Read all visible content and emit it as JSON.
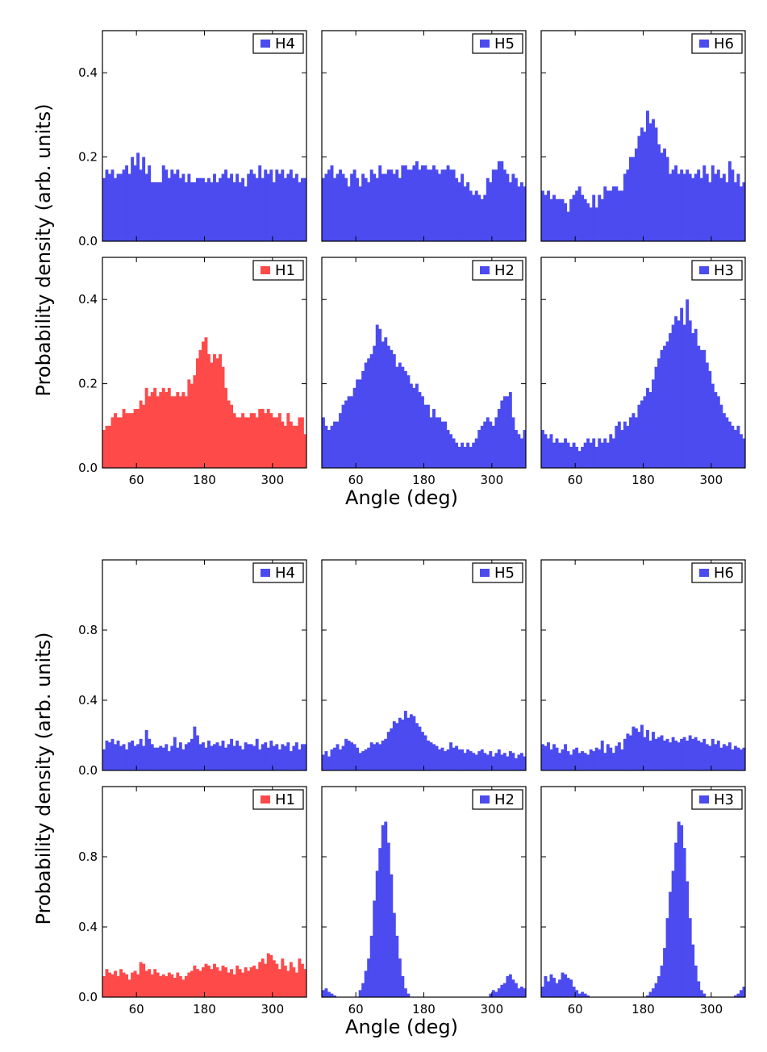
{
  "chart_data": [
    {
      "type": "bar",
      "ylabel": "Probability density (arb. units)",
      "xlabel": "Angle (deg)",
      "xlim": [
        0,
        360
      ],
      "ylim": [
        0,
        0.5
      ],
      "xticks": [
        "60",
        "180",
        "300"
      ],
      "yticks": [
        "0.0",
        "0.2",
        "0.4"
      ],
      "bin_width": 5,
      "panels": [
        {
          "label": "H4",
          "color": "#4b4bf0",
          "x_tick_labels_shown": false,
          "y_tick_labels_shown": true,
          "values": [
            0.15,
            0.17,
            0.16,
            0.17,
            0.15,
            0.16,
            0.16,
            0.17,
            0.18,
            0.16,
            0.2,
            0.18,
            0.21,
            0.17,
            0.2,
            0.16,
            0.18,
            0.14,
            0.14,
            0.14,
            0.14,
            0.18,
            0.17,
            0.15,
            0.17,
            0.16,
            0.17,
            0.15,
            0.16,
            0.14,
            0.16,
            0.14,
            0.14,
            0.15,
            0.15,
            0.15,
            0.14,
            0.15,
            0.14,
            0.16,
            0.14,
            0.15,
            0.16,
            0.17,
            0.15,
            0.16,
            0.14,
            0.16,
            0.14,
            0.15,
            0.13,
            0.16,
            0.17,
            0.16,
            0.15,
            0.18,
            0.15,
            0.17,
            0.16,
            0.17,
            0.14,
            0.17,
            0.16,
            0.17,
            0.15,
            0.16,
            0.17,
            0.15,
            0.16,
            0.14,
            0.15,
            0.15
          ]
        },
        {
          "label": "H5",
          "color": "#4b4bf0",
          "x_tick_labels_shown": false,
          "y_tick_labels_shown": false,
          "values": [
            0.15,
            0.16,
            0.17,
            0.18,
            0.15,
            0.16,
            0.17,
            0.16,
            0.15,
            0.13,
            0.16,
            0.17,
            0.15,
            0.13,
            0.16,
            0.15,
            0.14,
            0.17,
            0.16,
            0.15,
            0.18,
            0.16,
            0.16,
            0.17,
            0.17,
            0.16,
            0.17,
            0.15,
            0.18,
            0.18,
            0.17,
            0.17,
            0.18,
            0.19,
            0.17,
            0.18,
            0.18,
            0.17,
            0.17,
            0.18,
            0.17,
            0.16,
            0.17,
            0.17,
            0.18,
            0.17,
            0.17,
            0.15,
            0.14,
            0.16,
            0.13,
            0.14,
            0.12,
            0.11,
            0.12,
            0.11,
            0.1,
            0.11,
            0.15,
            0.14,
            0.17,
            0.17,
            0.19,
            0.19,
            0.17,
            0.16,
            0.14,
            0.16,
            0.15,
            0.13,
            0.14,
            0.13
          ]
        },
        {
          "label": "H6",
          "color": "#4b4bf0",
          "x_tick_labels_shown": false,
          "y_tick_labels_shown": false,
          "values": [
            0.12,
            0.11,
            0.12,
            0.1,
            0.11,
            0.1,
            0.1,
            0.1,
            0.09,
            0.07,
            0.1,
            0.11,
            0.12,
            0.13,
            0.11,
            0.1,
            0.09,
            0.08,
            0.11,
            0.08,
            0.11,
            0.1,
            0.13,
            0.12,
            0.12,
            0.13,
            0.13,
            0.12,
            0.12,
            0.16,
            0.17,
            0.2,
            0.2,
            0.22,
            0.25,
            0.27,
            0.26,
            0.31,
            0.28,
            0.29,
            0.27,
            0.23,
            0.21,
            0.22,
            0.2,
            0.16,
            0.17,
            0.18,
            0.16,
            0.17,
            0.16,
            0.17,
            0.16,
            0.15,
            0.16,
            0.17,
            0.15,
            0.18,
            0.16,
            0.14,
            0.18,
            0.16,
            0.17,
            0.15,
            0.16,
            0.14,
            0.19,
            0.17,
            0.14,
            0.16,
            0.13,
            0.14
          ]
        },
        {
          "label": "H1",
          "color": "#ff4a4a",
          "x_tick_labels_shown": true,
          "y_tick_labels_shown": true,
          "values": [
            0.09,
            0.1,
            0.1,
            0.12,
            0.13,
            0.12,
            0.12,
            0.14,
            0.13,
            0.13,
            0.13,
            0.14,
            0.14,
            0.16,
            0.15,
            0.19,
            0.17,
            0.18,
            0.19,
            0.17,
            0.18,
            0.19,
            0.18,
            0.19,
            0.17,
            0.17,
            0.18,
            0.17,
            0.18,
            0.17,
            0.21,
            0.2,
            0.22,
            0.26,
            0.28,
            0.3,
            0.31,
            0.27,
            0.25,
            0.27,
            0.26,
            0.27,
            0.24,
            0.19,
            0.16,
            0.15,
            0.13,
            0.12,
            0.12,
            0.13,
            0.12,
            0.12,
            0.13,
            0.13,
            0.12,
            0.14,
            0.14,
            0.13,
            0.14,
            0.13,
            0.12,
            0.12,
            0.13,
            0.11,
            0.1,
            0.13,
            0.11,
            0.1,
            0.1,
            0.12,
            0.12,
            0.08
          ]
        },
        {
          "label": "H2",
          "color": "#4b4bf0",
          "x_tick_labels_shown": true,
          "y_tick_labels_shown": false,
          "values": [
            0.12,
            0.1,
            0.09,
            0.1,
            0.11,
            0.11,
            0.13,
            0.15,
            0.16,
            0.17,
            0.17,
            0.19,
            0.21,
            0.21,
            0.23,
            0.25,
            0.26,
            0.27,
            0.29,
            0.34,
            0.33,
            0.3,
            0.31,
            0.29,
            0.28,
            0.27,
            0.24,
            0.25,
            0.24,
            0.23,
            0.22,
            0.2,
            0.19,
            0.2,
            0.18,
            0.17,
            0.15,
            0.15,
            0.12,
            0.14,
            0.12,
            0.12,
            0.11,
            0.11,
            0.09,
            0.08,
            0.07,
            0.06,
            0.05,
            0.06,
            0.05,
            0.06,
            0.05,
            0.06,
            0.07,
            0.09,
            0.1,
            0.11,
            0.12,
            0.11,
            0.1,
            0.12,
            0.14,
            0.16,
            0.17,
            0.17,
            0.18,
            0.12,
            0.09,
            0.08,
            0.07,
            0.09
          ]
        },
        {
          "label": "H3",
          "color": "#4b4bf0",
          "x_tick_labels_shown": true,
          "y_tick_labels_shown": false,
          "values": [
            0.09,
            0.08,
            0.07,
            0.08,
            0.06,
            0.07,
            0.06,
            0.06,
            0.07,
            0.06,
            0.05,
            0.06,
            0.05,
            0.04,
            0.05,
            0.06,
            0.07,
            0.06,
            0.07,
            0.05,
            0.07,
            0.06,
            0.07,
            0.06,
            0.08,
            0.07,
            0.1,
            0.11,
            0.09,
            0.11,
            0.1,
            0.12,
            0.13,
            0.12,
            0.15,
            0.16,
            0.17,
            0.19,
            0.18,
            0.21,
            0.24,
            0.26,
            0.28,
            0.29,
            0.3,
            0.32,
            0.34,
            0.36,
            0.35,
            0.38,
            0.34,
            0.4,
            0.35,
            0.32,
            0.33,
            0.29,
            0.28,
            0.28,
            0.25,
            0.23,
            0.2,
            0.18,
            0.17,
            0.15,
            0.13,
            0.12,
            0.11,
            0.1,
            0.09,
            0.1,
            0.08,
            0.07
          ]
        }
      ]
    },
    {
      "type": "bar",
      "ylabel": "Probability density (arb. units)",
      "xlabel": "Angle (deg)",
      "xlim": [
        0,
        360
      ],
      "ylim": [
        0,
        1.2
      ],
      "xticks": [
        "60",
        "180",
        "300"
      ],
      "yticks": [
        "0.0",
        "0.4",
        "0.8"
      ],
      "bin_width": 5,
      "panels": [
        {
          "label": "H4",
          "color": "#4b4bf0",
          "x_tick_labels_shown": false,
          "y_tick_labels_shown": true,
          "values": [
            0.12,
            0.17,
            0.16,
            0.18,
            0.15,
            0.17,
            0.14,
            0.15,
            0.12,
            0.16,
            0.17,
            0.14,
            0.15,
            0.18,
            0.14,
            0.23,
            0.18,
            0.15,
            0.13,
            0.13,
            0.14,
            0.13,
            0.15,
            0.11,
            0.14,
            0.19,
            0.13,
            0.16,
            0.12,
            0.15,
            0.16,
            0.18,
            0.25,
            0.2,
            0.15,
            0.16,
            0.13,
            0.17,
            0.14,
            0.15,
            0.16,
            0.14,
            0.17,
            0.13,
            0.15,
            0.18,
            0.14,
            0.17,
            0.14,
            0.12,
            0.16,
            0.15,
            0.15,
            0.14,
            0.18,
            0.12,
            0.15,
            0.16,
            0.13,
            0.17,
            0.14,
            0.15,
            0.12,
            0.15,
            0.14,
            0.16,
            0.11,
            0.14,
            0.16,
            0.12,
            0.15,
            0.15
          ]
        },
        {
          "label": "H5",
          "color": "#4b4bf0",
          "x_tick_labels_shown": false,
          "y_tick_labels_shown": false,
          "values": [
            0.09,
            0.11,
            0.08,
            0.12,
            0.13,
            0.15,
            0.12,
            0.14,
            0.18,
            0.17,
            0.16,
            0.15,
            0.13,
            0.1,
            0.11,
            0.12,
            0.13,
            0.16,
            0.15,
            0.16,
            0.15,
            0.17,
            0.18,
            0.22,
            0.24,
            0.28,
            0.27,
            0.3,
            0.29,
            0.34,
            0.3,
            0.32,
            0.31,
            0.27,
            0.25,
            0.22,
            0.2,
            0.17,
            0.16,
            0.15,
            0.14,
            0.12,
            0.13,
            0.11,
            0.12,
            0.16,
            0.13,
            0.14,
            0.12,
            0.12,
            0.1,
            0.12,
            0.11,
            0.1,
            0.09,
            0.11,
            0.12,
            0.1,
            0.09,
            0.11,
            0.08,
            0.1,
            0.12,
            0.09,
            0.1,
            0.08,
            0.11,
            0.1,
            0.07,
            0.09,
            0.1,
            0.08
          ]
        },
        {
          "label": "H6",
          "color": "#4b4bf0",
          "x_tick_labels_shown": false,
          "y_tick_labels_shown": false,
          "values": [
            0.15,
            0.14,
            0.16,
            0.12,
            0.15,
            0.13,
            0.1,
            0.12,
            0.15,
            0.11,
            0.09,
            0.12,
            0.13,
            0.1,
            0.11,
            0.1,
            0.09,
            0.12,
            0.11,
            0.13,
            0.12,
            0.17,
            0.1,
            0.15,
            0.13,
            0.1,
            0.14,
            0.16,
            0.12,
            0.18,
            0.21,
            0.2,
            0.25,
            0.24,
            0.22,
            0.26,
            0.19,
            0.23,
            0.17,
            0.22,
            0.18,
            0.19,
            0.2,
            0.17,
            0.18,
            0.16,
            0.19,
            0.17,
            0.16,
            0.18,
            0.19,
            0.17,
            0.2,
            0.18,
            0.19,
            0.17,
            0.16,
            0.18,
            0.15,
            0.14,
            0.18,
            0.15,
            0.17,
            0.13,
            0.15,
            0.14,
            0.16,
            0.12,
            0.14,
            0.13,
            0.12,
            0.13
          ]
        },
        {
          "label": "H1",
          "color": "#ff4a4a",
          "x_tick_labels_shown": true,
          "y_tick_labels_shown": true,
          "values": [
            0.12,
            0.16,
            0.14,
            0.13,
            0.15,
            0.12,
            0.16,
            0.14,
            0.13,
            0.1,
            0.14,
            0.15,
            0.13,
            0.2,
            0.19,
            0.15,
            0.16,
            0.13,
            0.16,
            0.14,
            0.12,
            0.13,
            0.12,
            0.14,
            0.13,
            0.11,
            0.14,
            0.12,
            0.1,
            0.12,
            0.14,
            0.15,
            0.18,
            0.16,
            0.15,
            0.17,
            0.19,
            0.18,
            0.16,
            0.19,
            0.17,
            0.15,
            0.18,
            0.17,
            0.14,
            0.16,
            0.13,
            0.18,
            0.16,
            0.14,
            0.17,
            0.15,
            0.17,
            0.18,
            0.16,
            0.2,
            0.22,
            0.19,
            0.25,
            0.24,
            0.21,
            0.19,
            0.16,
            0.22,
            0.18,
            0.15,
            0.2,
            0.17,
            0.14,
            0.22,
            0.19,
            0.16
          ]
        },
        {
          "label": "H2",
          "color": "#4b4bf0",
          "x_tick_labels_shown": true,
          "y_tick_labels_shown": false,
          "values": [
            0.04,
            0.05,
            0.03,
            0.02,
            0.01,
            0.0,
            0.0,
            0.0,
            0.0,
            0.0,
            0.0,
            0.0,
            0.0,
            0.04,
            0.08,
            0.15,
            0.22,
            0.35,
            0.55,
            0.72,
            0.85,
            0.98,
            1.0,
            0.88,
            0.7,
            0.48,
            0.35,
            0.22,
            0.12,
            0.05,
            0.02,
            0.0,
            0.0,
            0.0,
            0.0,
            0.0,
            0.0,
            0.0,
            0.0,
            0.0,
            0.0,
            0.0,
            0.0,
            0.0,
            0.0,
            0.0,
            0.0,
            0.0,
            0.0,
            0.0,
            0.0,
            0.0,
            0.0,
            0.0,
            0.0,
            0.0,
            0.0,
            0.0,
            0.0,
            0.02,
            0.04,
            0.03,
            0.05,
            0.07,
            0.08,
            0.12,
            0.13,
            0.1,
            0.08,
            0.05,
            0.06,
            0.05
          ]
        },
        {
          "label": "H3",
          "color": "#4b4bf0",
          "x_tick_labels_shown": true,
          "y_tick_labels_shown": false,
          "values": [
            0.06,
            0.12,
            0.09,
            0.13,
            0.11,
            0.08,
            0.1,
            0.14,
            0.13,
            0.11,
            0.1,
            0.06,
            0.04,
            0.02,
            0.03,
            0.02,
            0.01,
            0.0,
            0.0,
            0.0,
            0.0,
            0.0,
            0.0,
            0.0,
            0.0,
            0.0,
            0.0,
            0.0,
            0.0,
            0.0,
            0.0,
            0.0,
            0.0,
            0.0,
            0.0,
            0.0,
            0.0,
            0.01,
            0.03,
            0.05,
            0.08,
            0.12,
            0.18,
            0.28,
            0.45,
            0.6,
            0.72,
            0.88,
            1.0,
            0.98,
            0.85,
            0.66,
            0.45,
            0.3,
            0.18,
            0.09,
            0.04,
            0.02,
            0.0,
            0.0,
            0.0,
            0.0,
            0.0,
            0.0,
            0.0,
            0.0,
            0.0,
            0.0,
            0.01,
            0.02,
            0.04,
            0.06
          ]
        }
      ]
    }
  ]
}
